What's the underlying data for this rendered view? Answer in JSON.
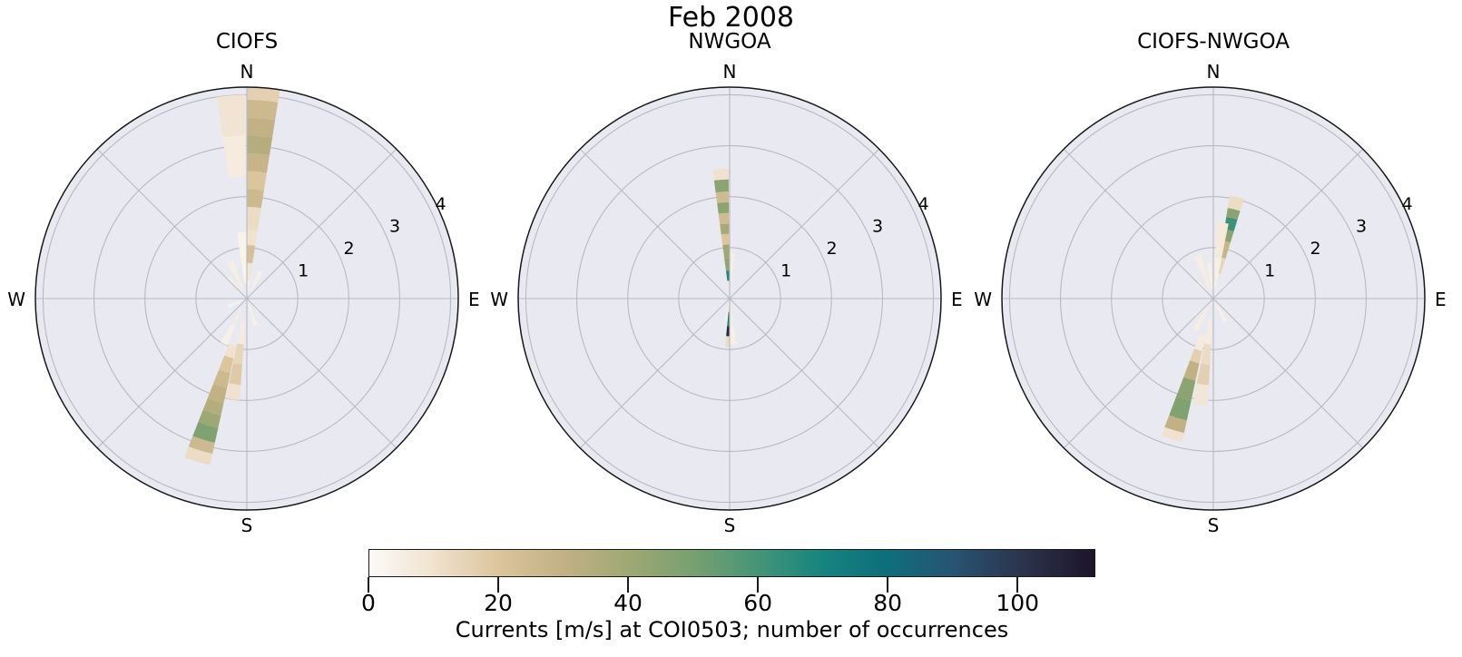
{
  "figure": {
    "title": "Feb 2008",
    "background": "#ffffff",
    "axes_background": "#e9e9f1",
    "grid_color": "#b9b9c2",
    "spine_color": "#17171d"
  },
  "colorbar": {
    "label": "Currents [m/s] at COI0503; number of occurrences",
    "ticks": [
      0,
      20,
      40,
      60,
      80,
      100
    ],
    "vmin": 0,
    "vmax": 112,
    "orientation": "horizontal",
    "stops": [
      [
        0,
        "#fcfaf8"
      ],
      [
        10,
        "#f0e2ce"
      ],
      [
        20,
        "#dcc49c"
      ],
      [
        30,
        "#c2b184"
      ],
      [
        40,
        "#9fa873"
      ],
      [
        50,
        "#78a070"
      ],
      [
        60,
        "#459578"
      ],
      [
        70,
        "#16847e"
      ],
      [
        80,
        "#0e6e7c"
      ],
      [
        90,
        "#275472"
      ],
      [
        100,
        "#2c3650"
      ],
      [
        112,
        "#1d1429"
      ]
    ]
  },
  "chart_data": [
    {
      "type": "windrose_stacked_polar_bar",
      "title": "CIOFS",
      "compass": [
        "N",
        "E",
        "S",
        "W"
      ],
      "r_ticks": [
        1,
        2,
        3,
        4
      ],
      "r_max": 4.15,
      "r_label_angle_deg": 64,
      "grid": true,
      "bars": [
        {
          "dir_deg": 4.5,
          "width_deg": 9,
          "segments": [
            [
              0,
              0.35,
              3
            ],
            [
              0.35,
              0.7,
              8
            ],
            [
              0.7,
              1.05,
              22
            ],
            [
              1.05,
              1.35,
              10
            ],
            [
              1.35,
              1.8,
              12
            ],
            [
              1.8,
              2.15,
              26
            ],
            [
              2.15,
              2.5,
              20
            ],
            [
              2.5,
              2.85,
              28
            ],
            [
              2.85,
              3.2,
              34
            ],
            [
              3.2,
              3.55,
              30
            ],
            [
              3.55,
              3.9,
              26
            ],
            [
              3.9,
              4.15,
              16
            ]
          ]
        },
        {
          "dir_deg": 355.5,
          "width_deg": 8,
          "segments": [
            [
              0.3,
              1.3,
              3
            ],
            [
              2.4,
              3.2,
              6
            ],
            [
              3.2,
              4.0,
              9
            ]
          ]
        },
        {
          "dir_deg": 197,
          "width_deg": 9,
          "segments": [
            [
              0.95,
              1.2,
              10
            ],
            [
              1.2,
              1.5,
              20
            ],
            [
              1.5,
              1.8,
              26
            ],
            [
              1.8,
              2.1,
              30
            ],
            [
              2.1,
              2.35,
              34
            ],
            [
              2.35,
              2.6,
              40
            ],
            [
              2.6,
              2.9,
              48
            ],
            [
              2.9,
              3.12,
              26
            ],
            [
              3.12,
              3.35,
              12
            ]
          ]
        },
        {
          "dir_deg": 188,
          "width_deg": 8,
          "segments": [
            [
              0.5,
              0.9,
              6
            ],
            [
              0.9,
              1.3,
              14
            ],
            [
              1.3,
              1.7,
              18
            ],
            [
              1.7,
              2.0,
              10
            ]
          ]
        },
        {
          "dir_deg": 207,
          "width_deg": 8,
          "segments": [
            [
              0.25,
              0.6,
              6
            ],
            [
              0.6,
              1.0,
              4
            ]
          ]
        },
        {
          "dir_deg": 318,
          "width_deg": 9,
          "segments": [
            [
              0.15,
              0.55,
              4
            ]
          ]
        },
        {
          "dir_deg": 336,
          "width_deg": 9,
          "segments": [
            [
              0.2,
              0.8,
              5
            ]
          ]
        },
        {
          "dir_deg": 27,
          "width_deg": 9,
          "segments": [
            [
              0.15,
              0.6,
              4
            ]
          ]
        },
        {
          "dir_deg": 162,
          "width_deg": 9,
          "segments": [
            [
              0.1,
              0.55,
              4
            ]
          ]
        },
        {
          "dir_deg": 247,
          "width_deg": 9,
          "segments": [
            [
              0.1,
              0.4,
              3
            ]
          ]
        },
        {
          "dir_deg": 135,
          "width_deg": 9,
          "segments": [
            [
              0.1,
              0.35,
              3
            ]
          ]
        }
      ]
    },
    {
      "type": "windrose_stacked_polar_bar",
      "title": "NWGOA",
      "compass": [
        "N",
        "E",
        "S",
        "W"
      ],
      "r_ticks": [
        1,
        2,
        3,
        4
      ],
      "r_max": 4.15,
      "r_label_angle_deg": 64,
      "grid": true,
      "bars": [
        {
          "dir_deg": 356,
          "width_deg": 7,
          "segments": [
            [
              0.08,
              0.35,
              8
            ],
            [
              0.35,
              0.55,
              68
            ],
            [
              0.55,
              0.79,
              45
            ],
            [
              0.79,
              1.06,
              40
            ],
            [
              1.06,
              1.27,
              20
            ],
            [
              1.27,
              1.47,
              38
            ],
            [
              1.47,
              1.68,
              25
            ],
            [
              1.68,
              1.89,
              45
            ],
            [
              1.89,
              2.1,
              25
            ],
            [
              2.1,
              2.34,
              45
            ],
            [
              2.34,
              2.55,
              10
            ]
          ]
        },
        {
          "dir_deg": 3.5,
          "width_deg": 6,
          "segments": [
            [
              0.35,
              0.9,
              5
            ]
          ]
        },
        {
          "dir_deg": 182,
          "width_deg": 6.5,
          "segments": [
            [
              0.1,
              0.27,
              20
            ],
            [
              0.27,
              0.54,
              72
            ],
            [
              0.54,
              0.74,
              106
            ],
            [
              0.74,
              0.95,
              12
            ]
          ]
        },
        {
          "dir_deg": 176,
          "width_deg": 9,
          "segments": [
            [
              0.05,
              0.55,
              6
            ],
            [
              0.55,
              0.9,
              4
            ]
          ]
        },
        {
          "dir_deg": 190,
          "width_deg": 7,
          "segments": [
            [
              0.1,
              0.45,
              4
            ]
          ]
        }
      ]
    },
    {
      "type": "windrose_stacked_polar_bar",
      "title": "CIOFS-NWGOA",
      "compass": [
        "N",
        "E",
        "S",
        "W"
      ],
      "r_ticks": [
        1,
        2,
        3,
        4
      ],
      "r_max": 4.15,
      "r_label_angle_deg": 64,
      "grid": true,
      "bars": [
        {
          "dir_deg": 13,
          "width_deg": 8,
          "segments": [
            [
              0.5,
              0.82,
              14
            ],
            [
              0.82,
              1.15,
              28
            ],
            [
              1.15,
              1.38,
              45
            ],
            [
              1.38,
              1.62,
              62
            ],
            [
              1.62,
              1.8,
              45
            ],
            [
              1.8,
              2.05,
              12
            ]
          ]
        },
        {
          "dir_deg": 7,
          "width_deg": 9,
          "segments": [
            [
              0.2,
              0.8,
              4
            ],
            [
              0.8,
              1.5,
              7
            ]
          ]
        },
        {
          "dir_deg": 196.5,
          "width_deg": 8.5,
          "segments": [
            [
              0.75,
              1.05,
              6
            ],
            [
              1.05,
              1.3,
              16
            ],
            [
              1.3,
              1.65,
              30
            ],
            [
              1.65,
              2.05,
              45
            ],
            [
              2.05,
              2.45,
              48
            ],
            [
              2.45,
              2.7,
              30
            ],
            [
              2.7,
              2.88,
              10
            ]
          ]
        },
        {
          "dir_deg": 187,
          "width_deg": 8,
          "segments": [
            [
              0.4,
              0.9,
              6
            ],
            [
              0.9,
              1.3,
              12
            ],
            [
              1.3,
              1.7,
              16
            ],
            [
              1.7,
              2.1,
              8
            ]
          ]
        },
        {
          "dir_deg": 340,
          "width_deg": 9,
          "segments": [
            [
              0.2,
              0.9,
              5
            ]
          ]
        },
        {
          "dir_deg": 353,
          "width_deg": 8,
          "segments": [
            [
              0.2,
              0.7,
              4
            ]
          ]
        },
        {
          "dir_deg": 210,
          "width_deg": 9,
          "segments": [
            [
              0.2,
              0.7,
              5
            ]
          ]
        },
        {
          "dir_deg": 225,
          "width_deg": 9,
          "segments": [
            [
              0.1,
              0.5,
              4
            ]
          ]
        },
        {
          "dir_deg": 152,
          "width_deg": 9,
          "segments": [
            [
              0.1,
              0.5,
              4
            ]
          ]
        },
        {
          "dir_deg": 45,
          "width_deg": 9,
          "segments": [
            [
              0.1,
              0.4,
              3
            ]
          ]
        },
        {
          "dir_deg": 315,
          "width_deg": 9,
          "segments": [
            [
              0.1,
              0.45,
              3
            ]
          ]
        }
      ]
    }
  ]
}
